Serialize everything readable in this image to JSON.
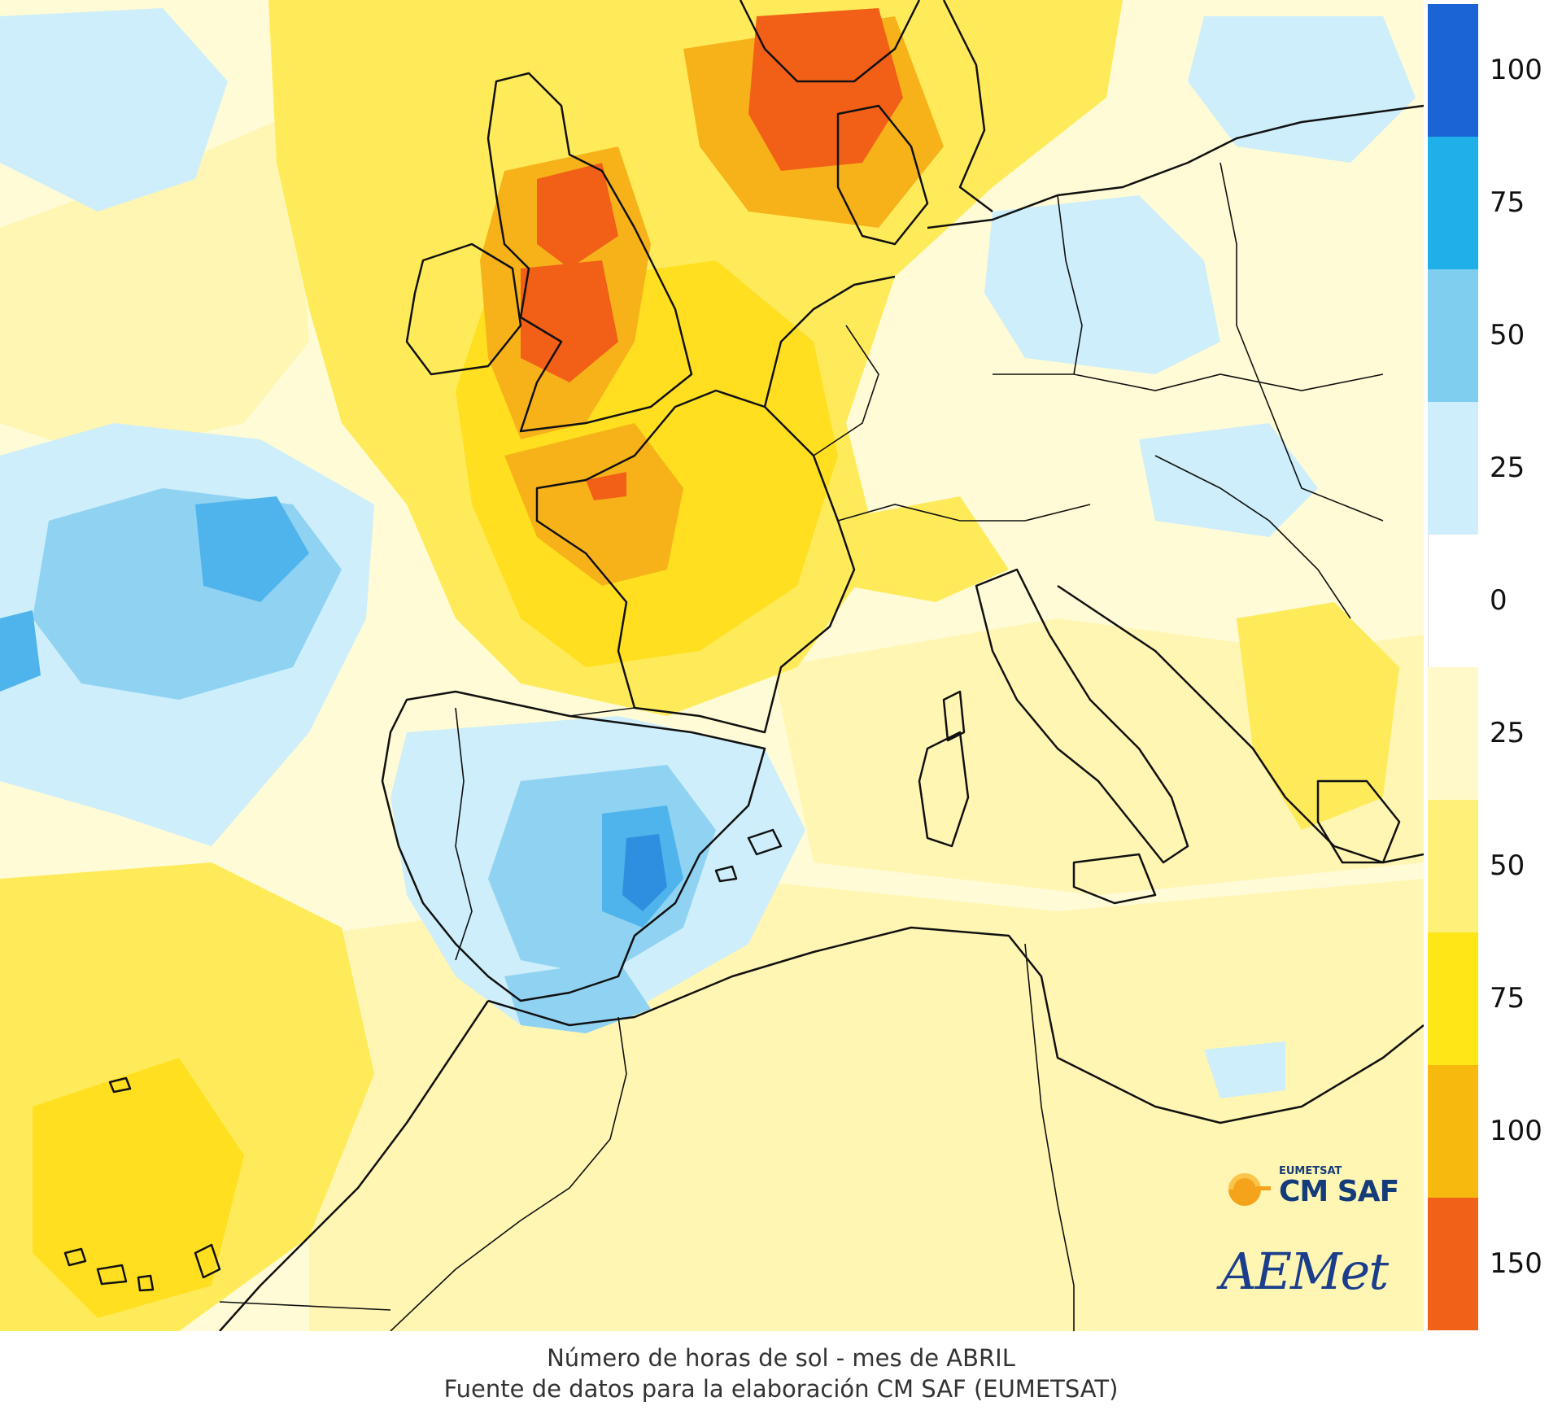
{
  "map": {
    "region": "Western Europe and North Africa",
    "colors": {
      "sea_base": "#fffbd6",
      "blue_light": "#cdeefa",
      "blue_mid": "#8fd2f2",
      "blue_strong": "#4fb4ec",
      "blue_deep": "#2e8fe0",
      "yellow_light": "#fff6b3",
      "yellow_mid": "#ffeb5a",
      "yellow_strong": "#ffdf1f",
      "orange": "#f7b21a",
      "red_orange": "#f25f16",
      "coastline": "#111111"
    }
  },
  "legend": {
    "ticks": [
      "100",
      "75",
      "50",
      "25",
      "0",
      "25",
      "50",
      "75",
      "100",
      "150"
    ],
    "colors": [
      "#1a64d6",
      "#1fb0ea",
      "#7fcdef",
      "#cdeefa",
      "#ffffff",
      "#fff8c8",
      "#fff07a",
      "#ffe617",
      "#f8b90f",
      "#f26118"
    ]
  },
  "caption": {
    "line1": "Número de horas de sol - mes de ABRIL",
    "line2": "Fuente de datos para la elaboración CM SAF (EUMETSAT)"
  },
  "logos": {
    "eumetsat": "EUMETSAT",
    "cmsaf": "CM SAF",
    "aemet": "AEMet"
  }
}
